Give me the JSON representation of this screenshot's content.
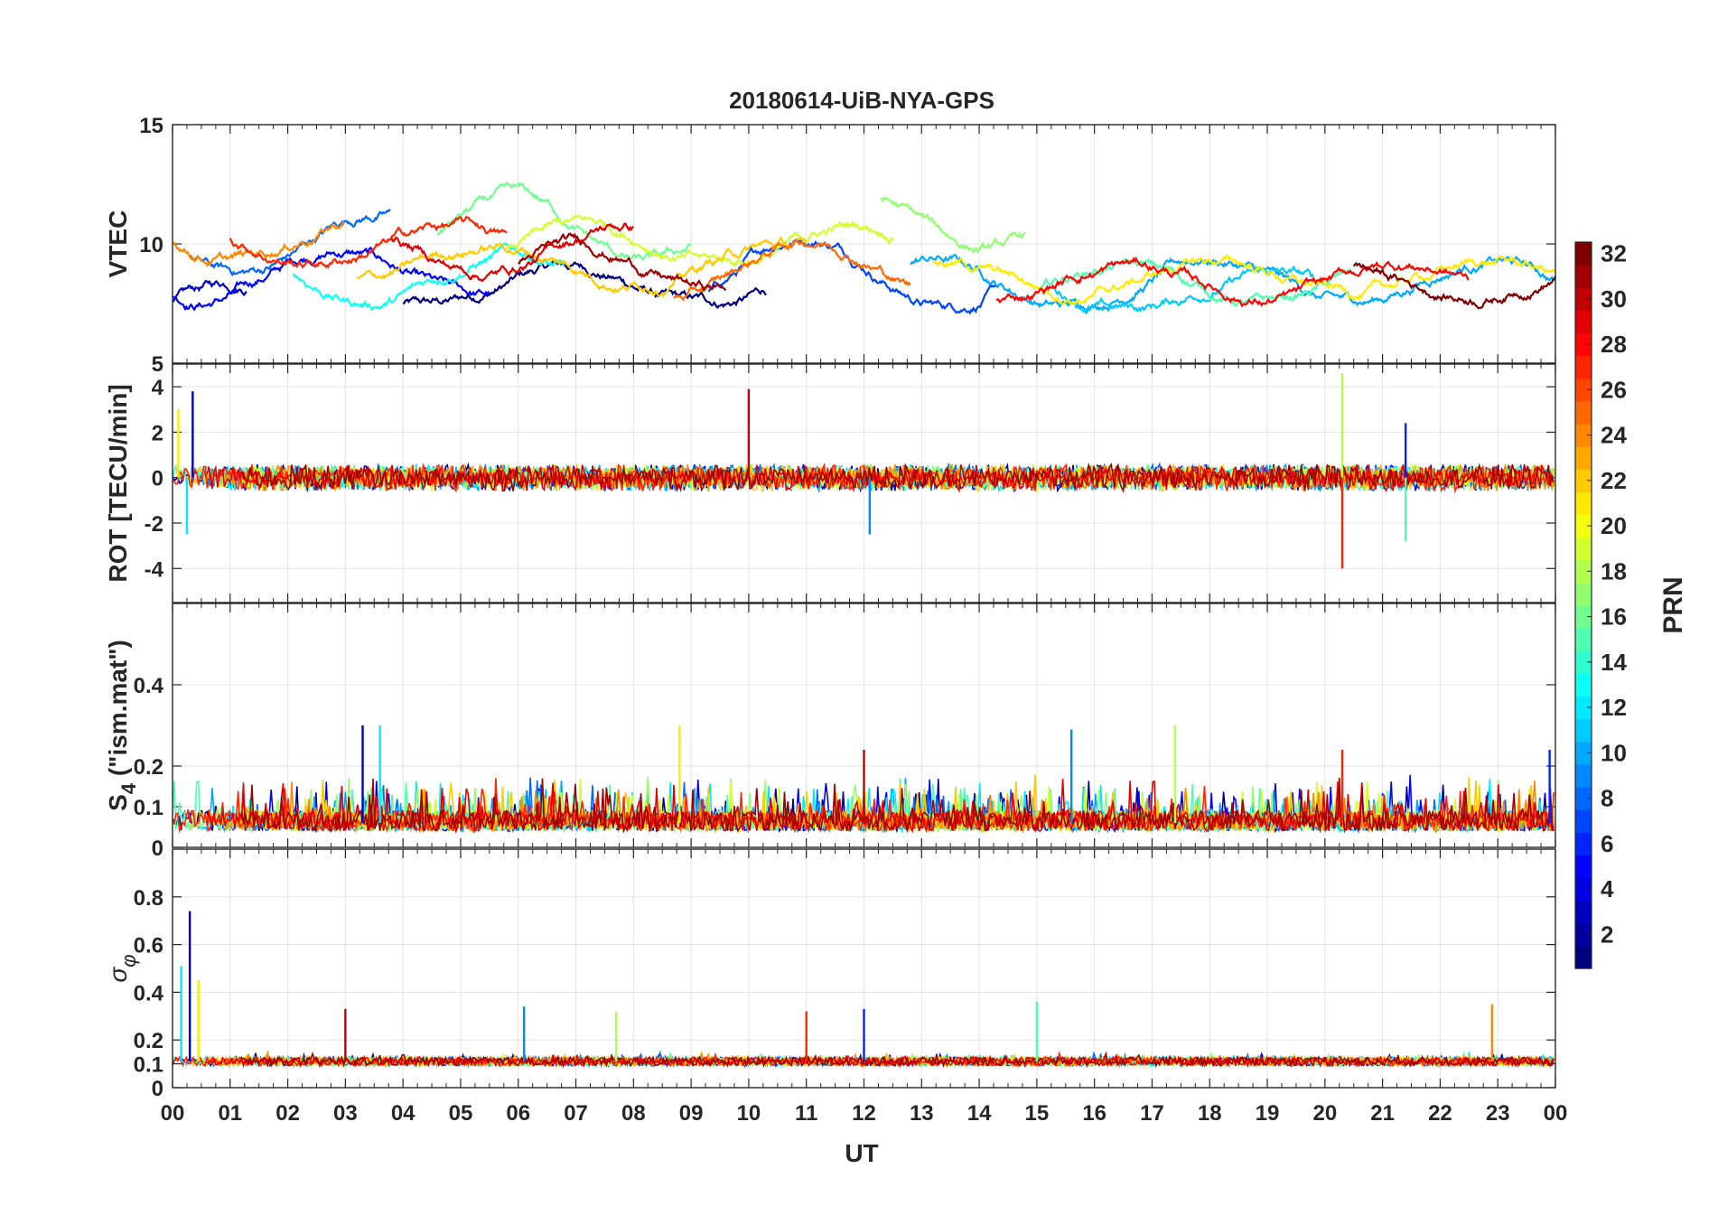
{
  "chart_data": {
    "type": "line",
    "title": "20180614-UiB-NYA-GPS",
    "xlabel": "UT",
    "x_ticks": [
      "00",
      "01",
      "02",
      "03",
      "04",
      "05",
      "06",
      "07",
      "08",
      "09",
      "10",
      "11",
      "12",
      "13",
      "14",
      "15",
      "16",
      "17",
      "18",
      "19",
      "20",
      "21",
      "22",
      "23",
      "00"
    ],
    "xlim": [
      0,
      24
    ],
    "grid": true,
    "colorbar": {
      "label": "PRN",
      "range": [
        1,
        32
      ],
      "ticks": [
        "2",
        "4",
        "6",
        "8",
        "10",
        "12",
        "14",
        "16",
        "18",
        "20",
        "22",
        "24",
        "26",
        "28",
        "30",
        "32"
      ],
      "colormap": "jet"
    },
    "panels": [
      {
        "name": "vtec",
        "ylabel": "VTEC",
        "ylim": [
          5,
          15
        ],
        "y_ticks": [
          "5",
          "10",
          "15"
        ],
        "series_summary": [
          {
            "prn": 1,
            "start": 4.0,
            "end": 10.3,
            "base": 8.2,
            "amp": 1.0
          },
          {
            "prn": 3,
            "start": 0.0,
            "end": 1.3,
            "base": 7.6,
            "amp": 0.9
          },
          {
            "prn": 5,
            "start": 0.0,
            "end": 5.5,
            "base": 8.7,
            "amp": 1.3
          },
          {
            "prn": 7,
            "start": 9.3,
            "end": 14.3,
            "base": 8.9,
            "amp": 1.8
          },
          {
            "prn": 8,
            "start": 0.3,
            "end": 3.8,
            "base": 10.0,
            "amp": 1.6
          },
          {
            "prn": 10,
            "start": 12.8,
            "end": 24.0,
            "base": 8.4,
            "amp": 1.2
          },
          {
            "prn": 11,
            "start": 15.3,
            "end": 19.8,
            "base": 8.0,
            "amp": 0.9
          },
          {
            "prn": 13,
            "start": 2.1,
            "end": 6.8,
            "base": 8.6,
            "amp": 1.3
          },
          {
            "prn": 15,
            "start": 15.0,
            "end": 20.5,
            "base": 8.3,
            "amp": 1.0
          },
          {
            "prn": 16,
            "start": 4.6,
            "end": 9.0,
            "base": 10.5,
            "amp": 1.7
          },
          {
            "prn": 17,
            "start": 12.3,
            "end": 14.8,
            "base": 11.0,
            "amp": 1.5
          },
          {
            "prn": 19,
            "start": 5.8,
            "end": 12.5,
            "base": 10.0,
            "amp": 0.9
          },
          {
            "prn": 21,
            "start": 13.2,
            "end": 24.0,
            "base": 8.6,
            "amp": 0.8
          },
          {
            "prn": 22,
            "start": 3.2,
            "end": 11.0,
            "base": 9.2,
            "amp": 0.9
          },
          {
            "prn": 24,
            "start": 0.0,
            "end": 3.0,
            "base": 10.3,
            "amp": 1.1
          },
          {
            "prn": 25,
            "start": 8.7,
            "end": 12.8,
            "base": 9.0,
            "amp": 1.5
          },
          {
            "prn": 27,
            "start": 1.0,
            "end": 5.8,
            "base": 10.0,
            "amp": 0.9
          },
          {
            "prn": 28,
            "start": 14.3,
            "end": 22.5,
            "base": 8.4,
            "amp": 0.9
          },
          {
            "prn": 29,
            "start": 3.8,
            "end": 8.0,
            "base": 9.8,
            "amp": 1.2
          },
          {
            "prn": 31,
            "start": 6.0,
            "end": 9.6,
            "base": 9.0,
            "amp": 1.1
          },
          {
            "prn": 32,
            "start": 20.5,
            "end": 24.0,
            "base": 8.5,
            "amp": 0.8
          }
        ]
      },
      {
        "name": "rot",
        "ylabel": "ROT [TECU/min]",
        "ylim": [
          -5.5,
          5
        ],
        "y_ticks": [
          "-4",
          "-2",
          "0",
          "2",
          "4"
        ],
        "spikes": [
          {
            "x": 0.35,
            "y": 3.8
          },
          {
            "x": 0.25,
            "y": -2.5
          },
          {
            "x": 0.1,
            "y": 3.0
          },
          {
            "x": 10.0,
            "y": 3.9
          },
          {
            "x": 12.1,
            "y": -2.5
          },
          {
            "x": 20.3,
            "y": 4.6
          },
          {
            "x": 20.3,
            "y": -4.0
          },
          {
            "x": 21.4,
            "y": 2.4
          },
          {
            "x": 21.4,
            "y": -2.8
          }
        ]
      },
      {
        "name": "s4",
        "ylabel": "S4 (\"ism.mat\")",
        "ylabel_main": "S",
        "ylabel_sub": "4",
        "ylabel_rest": " (\"ism.mat\")",
        "ylim": [
          0,
          0.6
        ],
        "y_ticks": [
          "0",
          "0.1",
          "0.2",
          "0.4"
        ],
        "baseline": 0.06,
        "events": [
          {
            "x": 3.3,
            "y": 0.3
          },
          {
            "x": 3.6,
            "y": 0.3
          },
          {
            "x": 8.8,
            "y": 0.3
          },
          {
            "x": 12.0,
            "y": 0.24
          },
          {
            "x": 15.6,
            "y": 0.29
          },
          {
            "x": 17.4,
            "y": 0.3
          },
          {
            "x": 20.3,
            "y": 0.24
          },
          {
            "x": 23.9,
            "y": 0.24
          }
        ]
      },
      {
        "name": "sigma-phi",
        "ylabel": "σφ",
        "ylabel_main": "σ",
        "ylabel_sub": "φ",
        "ylim": [
          0,
          1.0
        ],
        "y_ticks": [
          "0",
          "0.1",
          "0.2",
          "0.4",
          "0.6",
          "0.8"
        ],
        "baseline": 0.11,
        "spikes": [
          {
            "x": 0.3,
            "y": 0.74
          },
          {
            "x": 0.15,
            "y": 0.51
          },
          {
            "x": 0.45,
            "y": 0.45
          },
          {
            "x": 3.0,
            "y": 0.33
          },
          {
            "x": 6.1,
            "y": 0.34
          },
          {
            "x": 7.7,
            "y": 0.32
          },
          {
            "x": 11.0,
            "y": 0.32
          },
          {
            "x": 12.0,
            "y": 0.33
          },
          {
            "x": 15.0,
            "y": 0.36
          },
          {
            "x": 22.9,
            "y": 0.35
          }
        ]
      }
    ]
  }
}
